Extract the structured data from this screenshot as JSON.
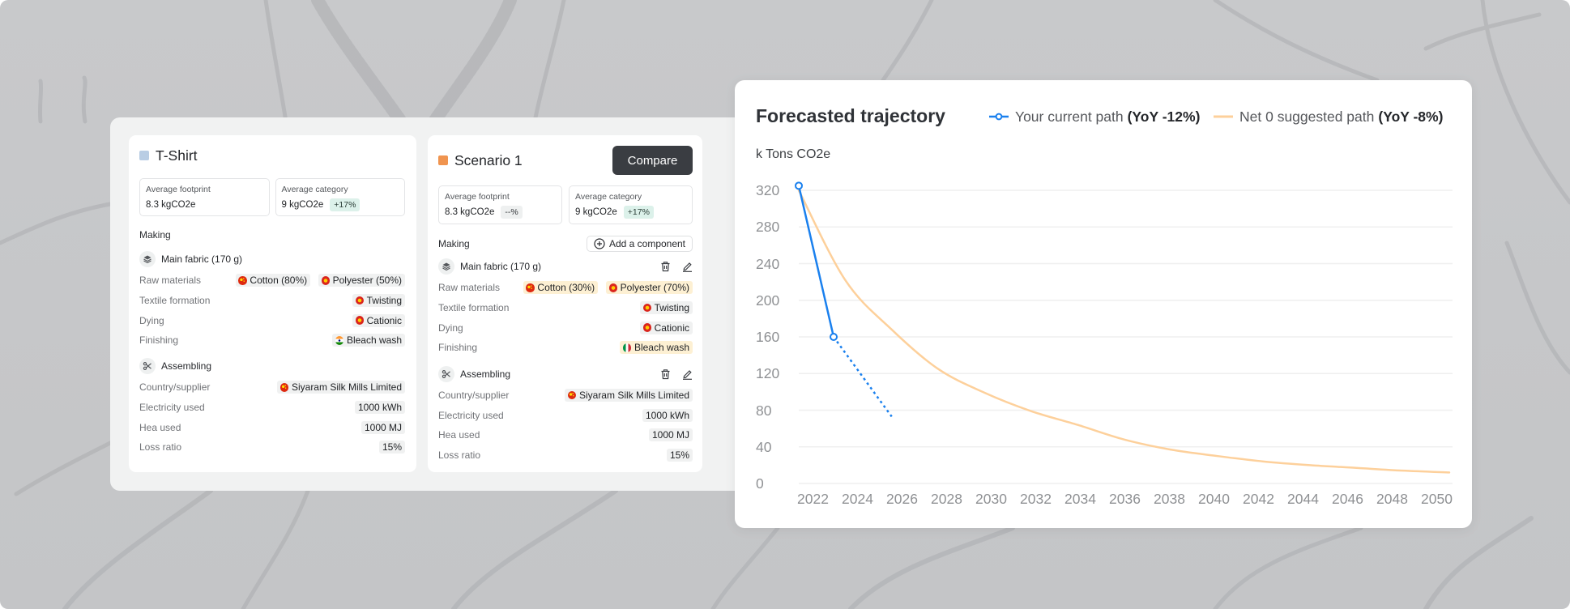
{
  "tshirt_card": {
    "title": "T-Shirt",
    "swatch_color": "#b9cde4",
    "metrics": {
      "footprint": {
        "label": "Average footprint",
        "value": "8.3 kgCO2e"
      },
      "category": {
        "label": "Average category",
        "value": "9 kgCO2e",
        "badge": "+17%"
      }
    },
    "section_label": "Making",
    "main_fabric": {
      "title": "Main fabric (170 g)",
      "icon": "layers-icon",
      "rows": [
        {
          "label": "Raw materials",
          "pills": [
            {
              "text": "Cotton (80%)",
              "flag": "china"
            },
            {
              "text": "Polyester (50%)",
              "flag": "vietnam"
            }
          ]
        },
        {
          "label": "Textile formation",
          "pills": [
            {
              "text": "Twisting",
              "flag": "vietnam"
            }
          ]
        },
        {
          "label": "Dying",
          "pills": [
            {
              "text": "Cationic",
              "flag": "vietnam"
            }
          ]
        },
        {
          "label": "Finishing",
          "pills": [
            {
              "text": "Bleach wash",
              "flag": "india"
            }
          ]
        }
      ]
    },
    "assembling": {
      "title": "Assembling",
      "icon": "scissors-icon",
      "rows": [
        {
          "label": "Country/supplier",
          "pills": [
            {
              "text": "Siyaram Silk Mills Limited",
              "flag": "china"
            }
          ]
        },
        {
          "label": "Electricity used",
          "pills": [
            {
              "text": "1000 kWh"
            }
          ]
        },
        {
          "label": "Hea used",
          "pills": [
            {
              "text": "1000 MJ"
            }
          ]
        },
        {
          "label": "Loss ratio",
          "pills": [
            {
              "text": "15%"
            }
          ]
        }
      ]
    }
  },
  "scenario_card": {
    "title": "Scenario 1",
    "swatch_color": "#f0944f",
    "compare_button": "Compare",
    "add_component_button": "Add a component",
    "metrics": {
      "footprint": {
        "label": "Average footprint",
        "value": "8.3 kgCO2e",
        "badge": "--%"
      },
      "category": {
        "label": "Average category",
        "value": "9 kgCO2e",
        "badge": "+17%"
      }
    },
    "section_label": "Making",
    "main_fabric": {
      "title": "Main fabric (170 g)",
      "icon": "layers-icon",
      "rows": [
        {
          "label": "Raw materials",
          "pills": [
            {
              "text": "Cotton (30%)",
              "flag": "china",
              "highlight": true
            },
            {
              "text": "Polyester (70%)",
              "flag": "vietnam",
              "highlight": true
            }
          ]
        },
        {
          "label": "Textile formation",
          "pills": [
            {
              "text": "Twisting",
              "flag": "vietnam"
            }
          ]
        },
        {
          "label": "Dying",
          "pills": [
            {
              "text": "Cationic",
              "flag": "vietnam"
            }
          ]
        },
        {
          "label": "Finishing",
          "pills": [
            {
              "text": "Bleach wash",
              "flag": "italy",
              "highlight": true
            }
          ]
        }
      ]
    },
    "assembling": {
      "title": "Assembling",
      "icon": "scissors-icon",
      "rows": [
        {
          "label": "Country/supplier",
          "pills": [
            {
              "text": "Siyaram Silk Mills Limited",
              "flag": "china"
            }
          ]
        },
        {
          "label": "Electricity used",
          "pills": [
            {
              "text": "1000 kWh"
            }
          ]
        },
        {
          "label": "Hea used",
          "pills": [
            {
              "text": "1000 MJ"
            }
          ]
        },
        {
          "label": "Loss ratio",
          "pills": [
            {
              "text": "15%"
            }
          ]
        }
      ]
    }
  },
  "chart_data": {
    "type": "line",
    "title": "Forecasted trajectory",
    "xlabel": "",
    "ylabel": "k Tons CO2e",
    "xlim": [
      2022,
      2050
    ],
    "ylim": [
      0,
      320
    ],
    "x_ticks": [
      "2022",
      "2024",
      "2026",
      "2028",
      "2030",
      "2032",
      "2034",
      "2036",
      "2038",
      "2040",
      "2042",
      "2044",
      "2046",
      "2048",
      "2050"
    ],
    "y_ticks": [
      0,
      40,
      80,
      120,
      160,
      200,
      240,
      280,
      320
    ],
    "grid": "horizontal",
    "legend_position": "top-right",
    "series": [
      {
        "name": "Your current path",
        "annotation": "(YoY -12%)",
        "color": "#1a80ee",
        "points": [
          [
            2022,
            325
          ],
          [
            2023.5,
            160
          ]
        ],
        "projection_points": [
          [
            2023.5,
            160
          ],
          [
            2026,
            73
          ]
        ]
      },
      {
        "name": "Net 0 suggested path",
        "annotation": "(YoY -8%)",
        "color": "#fdd09b",
        "x": [
          2022,
          2024,
          2026,
          2028,
          2030,
          2032,
          2034,
          2036,
          2038,
          2040,
          2042,
          2044,
          2046,
          2048,
          2050
        ],
        "values": [
          320,
          222,
          168,
          125,
          99,
          79,
          64,
          48,
          37,
          30,
          24,
          20,
          17,
          14,
          12
        ]
      }
    ]
  }
}
